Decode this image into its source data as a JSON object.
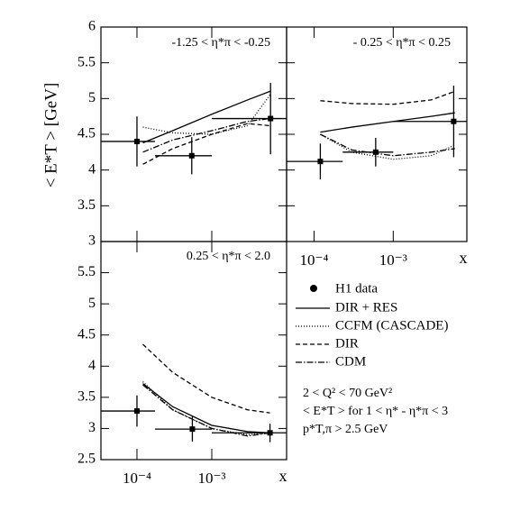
{
  "chart_data": [
    {
      "type": "line",
      "title": "-1.25 < η*π < -0.25",
      "ylabel": "< E*T >  [GeV]",
      "xlog": true,
      "xlim": [
        3.3e-05,
        0.01
      ],
      "ylim": [
        3,
        6
      ],
      "yticks": [
        3,
        3.5,
        4,
        4.5,
        5,
        5.5,
        6
      ],
      "xticks": [
        0.0001,
        0.001
      ],
      "points": {
        "name": "H1 data",
        "x": [
          0.0001,
          0.00054,
          0.0061
        ],
        "values": [
          4.4,
          4.2,
          4.72
        ],
        "errors": [
          0.35,
          0.26,
          0.5
        ],
        "xlow": [
          3.3e-05,
          0.000174,
          0.001
        ],
        "xhigh": [
          0.000174,
          0.001,
          0.01
        ]
      },
      "x": [
        0.00012,
        0.0003,
        0.001,
        0.003,
        0.006
      ],
      "series": [
        {
          "name": "DIR + RES",
          "style": "solid",
          "color": "#000000",
          "values": [
            4.38,
            4.55,
            4.78,
            4.98,
            5.1
          ]
        },
        {
          "name": "CCFM (CASCADE)",
          "style": "dotted",
          "color": "#000000",
          "values": [
            4.6,
            4.52,
            4.5,
            4.62,
            5.05
          ]
        },
        {
          "name": "DIR",
          "style": "dashed",
          "color": "#000000",
          "values": [
            4.08,
            4.3,
            4.5,
            4.65,
            4.62
          ]
        },
        {
          "name": "CDM",
          "style": "dashdot",
          "color": "#000000",
          "values": [
            4.25,
            4.42,
            4.55,
            4.68,
            4.72
          ]
        }
      ]
    },
    {
      "type": "line",
      "title": "- 0.25 < η*π < 0.25",
      "xlabel": "x",
      "xlog": true,
      "xlim": [
        4.5e-05,
        0.0085
      ],
      "ylim": [
        3,
        6
      ],
      "yticks": [
        3,
        3.5,
        4,
        4.5,
        5,
        5.5,
        6
      ],
      "xticks": [
        {
          "value": 0.0001,
          "label": "10⁻⁴"
        },
        {
          "value": 0.001,
          "label": "10⁻³"
        }
      ],
      "points": {
        "x": [
          0.00012,
          0.0006,
          0.0058
        ],
        "values": [
          4.12,
          4.25,
          4.68
        ],
        "errors": [
          0.25,
          0.2,
          0.5
        ],
        "xlow": [
          4.5e-05,
          0.00023,
          0.001
        ],
        "xhigh": [
          0.00023,
          0.001,
          0.0085
        ]
      },
      "x": [
        0.00012,
        0.0003,
        0.001,
        0.003,
        0.006
      ],
      "series": [
        {
          "style": "solid",
          "color": "#000000",
          "values": [
            4.53,
            4.6,
            4.68,
            4.75,
            4.8
          ]
        },
        {
          "style": "dotted",
          "color": "#000000",
          "values": [
            4.5,
            4.25,
            4.15,
            4.2,
            4.35
          ]
        },
        {
          "style": "dashed",
          "color": "#000000",
          "values": [
            4.97,
            4.93,
            4.92,
            4.98,
            5.1
          ]
        },
        {
          "style": "dashdot",
          "color": "#000000",
          "values": [
            4.5,
            4.28,
            4.2,
            4.25,
            4.3
          ]
        }
      ]
    },
    {
      "type": "line",
      "title": "0.25 < η*π < 2.0",
      "xlabel": "x",
      "xlog": true,
      "xlim": [
        3.3e-05,
        0.01
      ],
      "ylim": [
        2.5,
        6
      ],
      "yticks": [
        2.5,
        3,
        3.5,
        4,
        4.5,
        5,
        5.5
      ],
      "xticks": [
        {
          "value": 0.0001,
          "label": "10⁻⁴"
        },
        {
          "value": 0.001,
          "label": "10⁻³"
        }
      ],
      "points": {
        "x": [
          0.0001,
          0.00055,
          0.006
        ],
        "values": [
          3.28,
          2.99,
          2.93
        ],
        "errors": [
          0.25,
          0.2,
          0.15
        ],
        "xlow": [
          3.3e-05,
          0.000174,
          0.001
        ],
        "xhigh": [
          0.000174,
          0.001,
          0.01
        ]
      },
      "x": [
        0.00012,
        0.0003,
        0.001,
        0.003,
        0.006
      ],
      "series": [
        {
          "style": "solid",
          "color": "#000000",
          "values": [
            3.72,
            3.35,
            3.05,
            2.95,
            2.93
          ]
        },
        {
          "style": "dotted",
          "color": "#000000",
          "values": [
            3.75,
            3.3,
            3.0,
            2.9,
            2.93
          ]
        },
        {
          "style": "dashed",
          "color": "#000000",
          "values": [
            4.35,
            3.9,
            3.5,
            3.3,
            3.25
          ]
        },
        {
          "style": "dashdot",
          "color": "#000000",
          "values": [
            3.7,
            3.3,
            3.0,
            2.88,
            2.93
          ]
        }
      ]
    }
  ],
  "notes": [
    "2  <  Q² < 70 GeV²",
    "< E*T >   for  1 < η* - η*π < 3",
    "p*T,π > 2.5 GeV"
  ]
}
